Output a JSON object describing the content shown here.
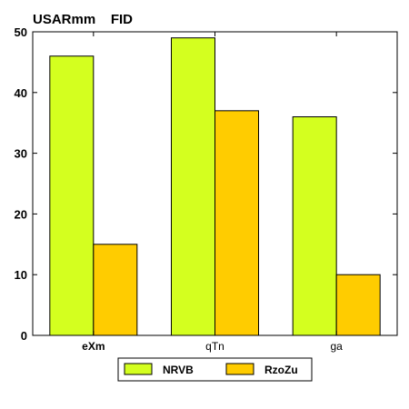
{
  "chart_data": {
    "type": "bar",
    "title": "USARmm    FID",
    "xlabel": "",
    "ylabel": "",
    "categories": [
      "eXm",
      "qTn",
      "ga"
    ],
    "series": [
      {
        "name": "NRVB",
        "values": [
          46,
          49,
          36
        ],
        "color": "#d4ff1f"
      },
      {
        "name": "RzoZu",
        "values": [
          15,
          37,
          10
        ],
        "color": "#ffcc00"
      }
    ],
    "ylim": [
      0,
      50
    ],
    "yticks": [
      0,
      10,
      20,
      30,
      40,
      50
    ],
    "grid": false,
    "legend_position": "bottom-center"
  }
}
